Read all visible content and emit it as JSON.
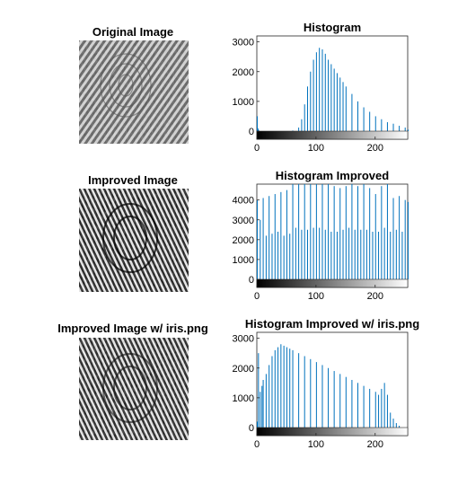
{
  "figure": {
    "background": "#ffffff",
    "panels": [
      {
        "title": "Original Image",
        "content": "fingerprint-grayscale"
      },
      {
        "title": "Improved Image",
        "content": "fingerprint-equalized"
      },
      {
        "title": "Improved Image w/ iris.png",
        "content": "fingerprint-matched"
      }
    ]
  },
  "chart_data": [
    {
      "type": "bar",
      "title": "Histogram",
      "xlabel": "",
      "ylabel": "",
      "xlim": [
        0,
        255
      ],
      "ylim": [
        0,
        3200
      ],
      "xticks": [
        0,
        100,
        200
      ],
      "yticks": [
        0,
        1000,
        2000,
        3000
      ],
      "bar_color": "#0072bd",
      "colorbar": "grayscale 0-255",
      "x": [
        0,
        1,
        2,
        60,
        70,
        75,
        80,
        85,
        90,
        95,
        100,
        105,
        110,
        115,
        120,
        125,
        130,
        135,
        140,
        145,
        150,
        160,
        170,
        180,
        190,
        200,
        210,
        220,
        230,
        240,
        250,
        255
      ],
      "values": [
        500,
        100,
        50,
        20,
        120,
        400,
        900,
        1500,
        2000,
        2400,
        2650,
        2800,
        2750,
        2600,
        2400,
        2250,
        2100,
        1950,
        1800,
        1650,
        1500,
        1250,
        1000,
        800,
        650,
        500,
        400,
        300,
        250,
        180,
        120,
        50
      ]
    },
    {
      "type": "bar",
      "title": "Histogram Improved",
      "xlabel": "",
      "ylabel": "",
      "xlim": [
        0,
        255
      ],
      "ylim": [
        0,
        4800
      ],
      "xticks": [
        0,
        100,
        200
      ],
      "yticks": [
        0,
        1000,
        2000,
        3000,
        4000
      ],
      "bar_color": "#0072bd",
      "colorbar": "grayscale 0-255",
      "x": [
        0,
        5,
        10,
        15,
        20,
        25,
        30,
        35,
        40,
        45,
        50,
        55,
        60,
        65,
        70,
        75,
        80,
        85,
        90,
        95,
        100,
        105,
        110,
        115,
        120,
        125,
        130,
        135,
        140,
        145,
        150,
        155,
        160,
        165,
        170,
        175,
        180,
        185,
        190,
        195,
        200,
        205,
        210,
        215,
        220,
        225,
        230,
        235,
        240,
        245,
        250,
        255
      ],
      "values": [
        4000,
        3000,
        4100,
        2200,
        4200,
        2300,
        4300,
        2400,
        4400,
        2200,
        4500,
        2300,
        4800,
        2600,
        4800,
        2500,
        4800,
        2500,
        4800,
        2600,
        4800,
        2600,
        4800,
        2500,
        4800,
        2400,
        4700,
        2400,
        4600,
        2500,
        4700,
        2600,
        4800,
        2500,
        4700,
        2500,
        4800,
        2500,
        4600,
        2400,
        4300,
        2400,
        4700,
        2600,
        4800,
        2400,
        4100,
        2500,
        4200,
        2400,
        4000,
        3900
      ]
    },
    {
      "type": "bar",
      "title": "Histogram Improved w/ iris.png",
      "xlabel": "",
      "ylabel": "",
      "xlim": [
        0,
        255
      ],
      "ylim": [
        0,
        3200
      ],
      "xticks": [
        0,
        100,
        200
      ],
      "yticks": [
        0,
        1000,
        2000,
        3000
      ],
      "bar_color": "#0072bd",
      "colorbar": "grayscale 0-255",
      "x": [
        0,
        2,
        5,
        8,
        10,
        15,
        20,
        25,
        30,
        35,
        40,
        45,
        50,
        55,
        60,
        70,
        80,
        90,
        100,
        110,
        120,
        130,
        140,
        150,
        160,
        170,
        180,
        190,
        200,
        205,
        210,
        215,
        220,
        225,
        230,
        235,
        240
      ],
      "values": [
        200,
        2500,
        1200,
        1400,
        1600,
        1800,
        2100,
        2400,
        2600,
        2700,
        2800,
        2750,
        2700,
        2650,
        2600,
        2500,
        2400,
        2300,
        2200,
        2100,
        2000,
        1900,
        1800,
        1700,
        1600,
        1500,
        1400,
        1300,
        1200,
        1100,
        1300,
        1500,
        1100,
        500,
        300,
        150,
        60
      ]
    }
  ]
}
